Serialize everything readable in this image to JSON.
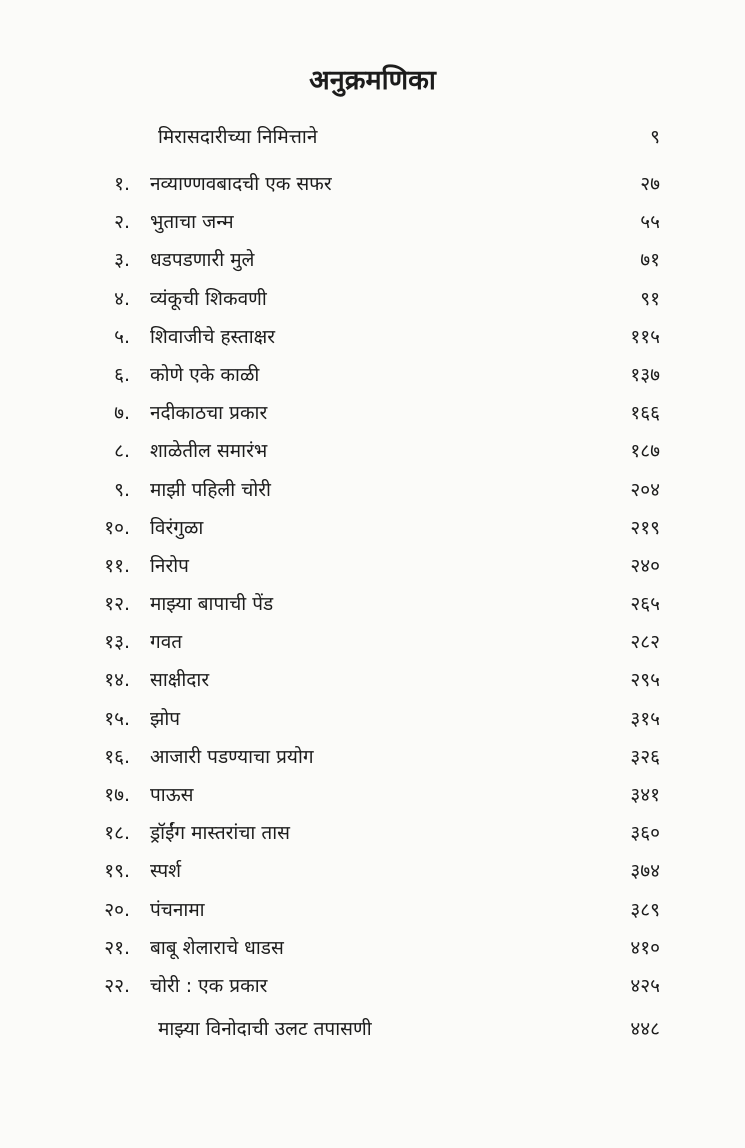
{
  "title": "अनुक्रमणिका",
  "entries": [
    {
      "num": "",
      "label": "मिरासदारीच्या निमित्ताने",
      "page": "९"
    },
    {
      "num": "१.",
      "label": "नव्याण्णवबादची एक सफर",
      "page": "२७"
    },
    {
      "num": "२.",
      "label": "भुताचा जन्म",
      "page": "५५"
    },
    {
      "num": "३.",
      "label": "धडपडणारी मुले",
      "page": "७१"
    },
    {
      "num": "४.",
      "label": "व्यंकूची शिकवणी",
      "page": "९१"
    },
    {
      "num": "५.",
      "label": "शिवाजीचे हस्ताक्षर",
      "page": "११५"
    },
    {
      "num": "६.",
      "label": "कोणे एके काळी",
      "page": "१३७"
    },
    {
      "num": "७.",
      "label": "नदीकाठचा प्रकार",
      "page": "१६६"
    },
    {
      "num": "८.",
      "label": "शाळेतील समारंभ",
      "page": "१८७"
    },
    {
      "num": "९.",
      "label": "माझी पहिली चोरी",
      "page": "२०४"
    },
    {
      "num": "१०.",
      "label": "विरंगुळा",
      "page": "२१९"
    },
    {
      "num": "११.",
      "label": "निरोप",
      "page": "२४०"
    },
    {
      "num": "१२.",
      "label": "माझ्या बापाची पेंड",
      "page": "२६५"
    },
    {
      "num": "१३.",
      "label": "गवत",
      "page": "२८२"
    },
    {
      "num": "१४.",
      "label": "साक्षीदार",
      "page": "२९५"
    },
    {
      "num": "१५.",
      "label": "झोप",
      "page": "३१५"
    },
    {
      "num": "१६.",
      "label": "आजारी पडण्याचा प्रयोग",
      "page": "३२६"
    },
    {
      "num": "१७.",
      "label": "पाऊस",
      "page": "३४१"
    },
    {
      "num": "१८.",
      "label": "ड्रॉईंग मास्तरांचा तास",
      "page": "३६०"
    },
    {
      "num": "१९.",
      "label": "स्पर्श",
      "page": "३७४"
    },
    {
      "num": "२०.",
      "label": "पंचनामा",
      "page": "३८९"
    },
    {
      "num": "२१.",
      "label": "बाबू शेलाराचे धाडस",
      "page": "४१०"
    },
    {
      "num": "२२.",
      "label": "चोरी : एक प्रकार",
      "page": "४२५"
    },
    {
      "num": "",
      "label": "माझ्या विनोदाची उलट तपासणी",
      "page": "४४८"
    }
  ]
}
